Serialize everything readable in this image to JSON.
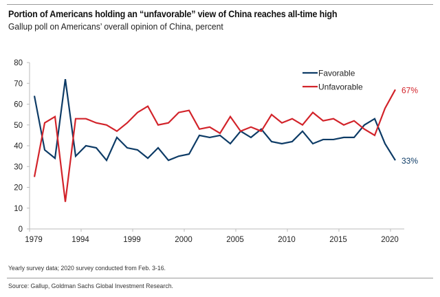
{
  "title": "Portion of Americans holding an “unfavorable” view of China reaches all-time high",
  "subtitle": "Gallup poll on Americans’ overall opinion of China, percent",
  "footnote": "Yearly survey data; 2020 survey conducted from Feb. 3-16.",
  "source": "Source: Gallup, Goldman Sachs Global Investment Research.",
  "chart_data": {
    "type": "line",
    "ylim": [
      0,
      80
    ],
    "y_ticks": [
      "0",
      "10",
      "20",
      "30",
      "40",
      "50",
      "60",
      "70",
      "80"
    ],
    "x_tick_labels": [
      {
        "label": "1979",
        "point": 0
      },
      {
        "label": "1994",
        "point": 5
      },
      {
        "label": "1999",
        "point": 10
      },
      {
        "label": "2000",
        "point": 15
      },
      {
        "label": "2005",
        "point": 20
      },
      {
        "label": "2010",
        "point": 25
      },
      {
        "label": "2015",
        "point": 30
      },
      {
        "label": "2020",
        "point": 35
      }
    ],
    "grid": false,
    "legend_position": "top-right",
    "series": [
      {
        "name": "Favorable",
        "color": "#0d3b66",
        "values": [
          64,
          38,
          34,
          72,
          35,
          40,
          39,
          33,
          44,
          39,
          38,
          34,
          39,
          33,
          35,
          36,
          45,
          44,
          45,
          41,
          47,
          44,
          48,
          42,
          41,
          42,
          47,
          41,
          43,
          43,
          44,
          44,
          50,
          53,
          41,
          33
        ],
        "end_label": "33%"
      },
      {
        "name": "Unfavorable",
        "color": "#d2232a",
        "values": [
          25,
          51,
          54,
          13,
          53,
          53,
          51,
          50,
          47,
          51,
          56,
          59,
          50,
          51,
          56,
          57,
          48,
          49,
          46,
          54,
          47,
          49,
          47,
          55,
          51,
          53,
          50,
          56,
          52,
          53,
          50,
          52,
          48,
          45,
          58,
          67
        ],
        "end_label": "67%"
      }
    ]
  }
}
